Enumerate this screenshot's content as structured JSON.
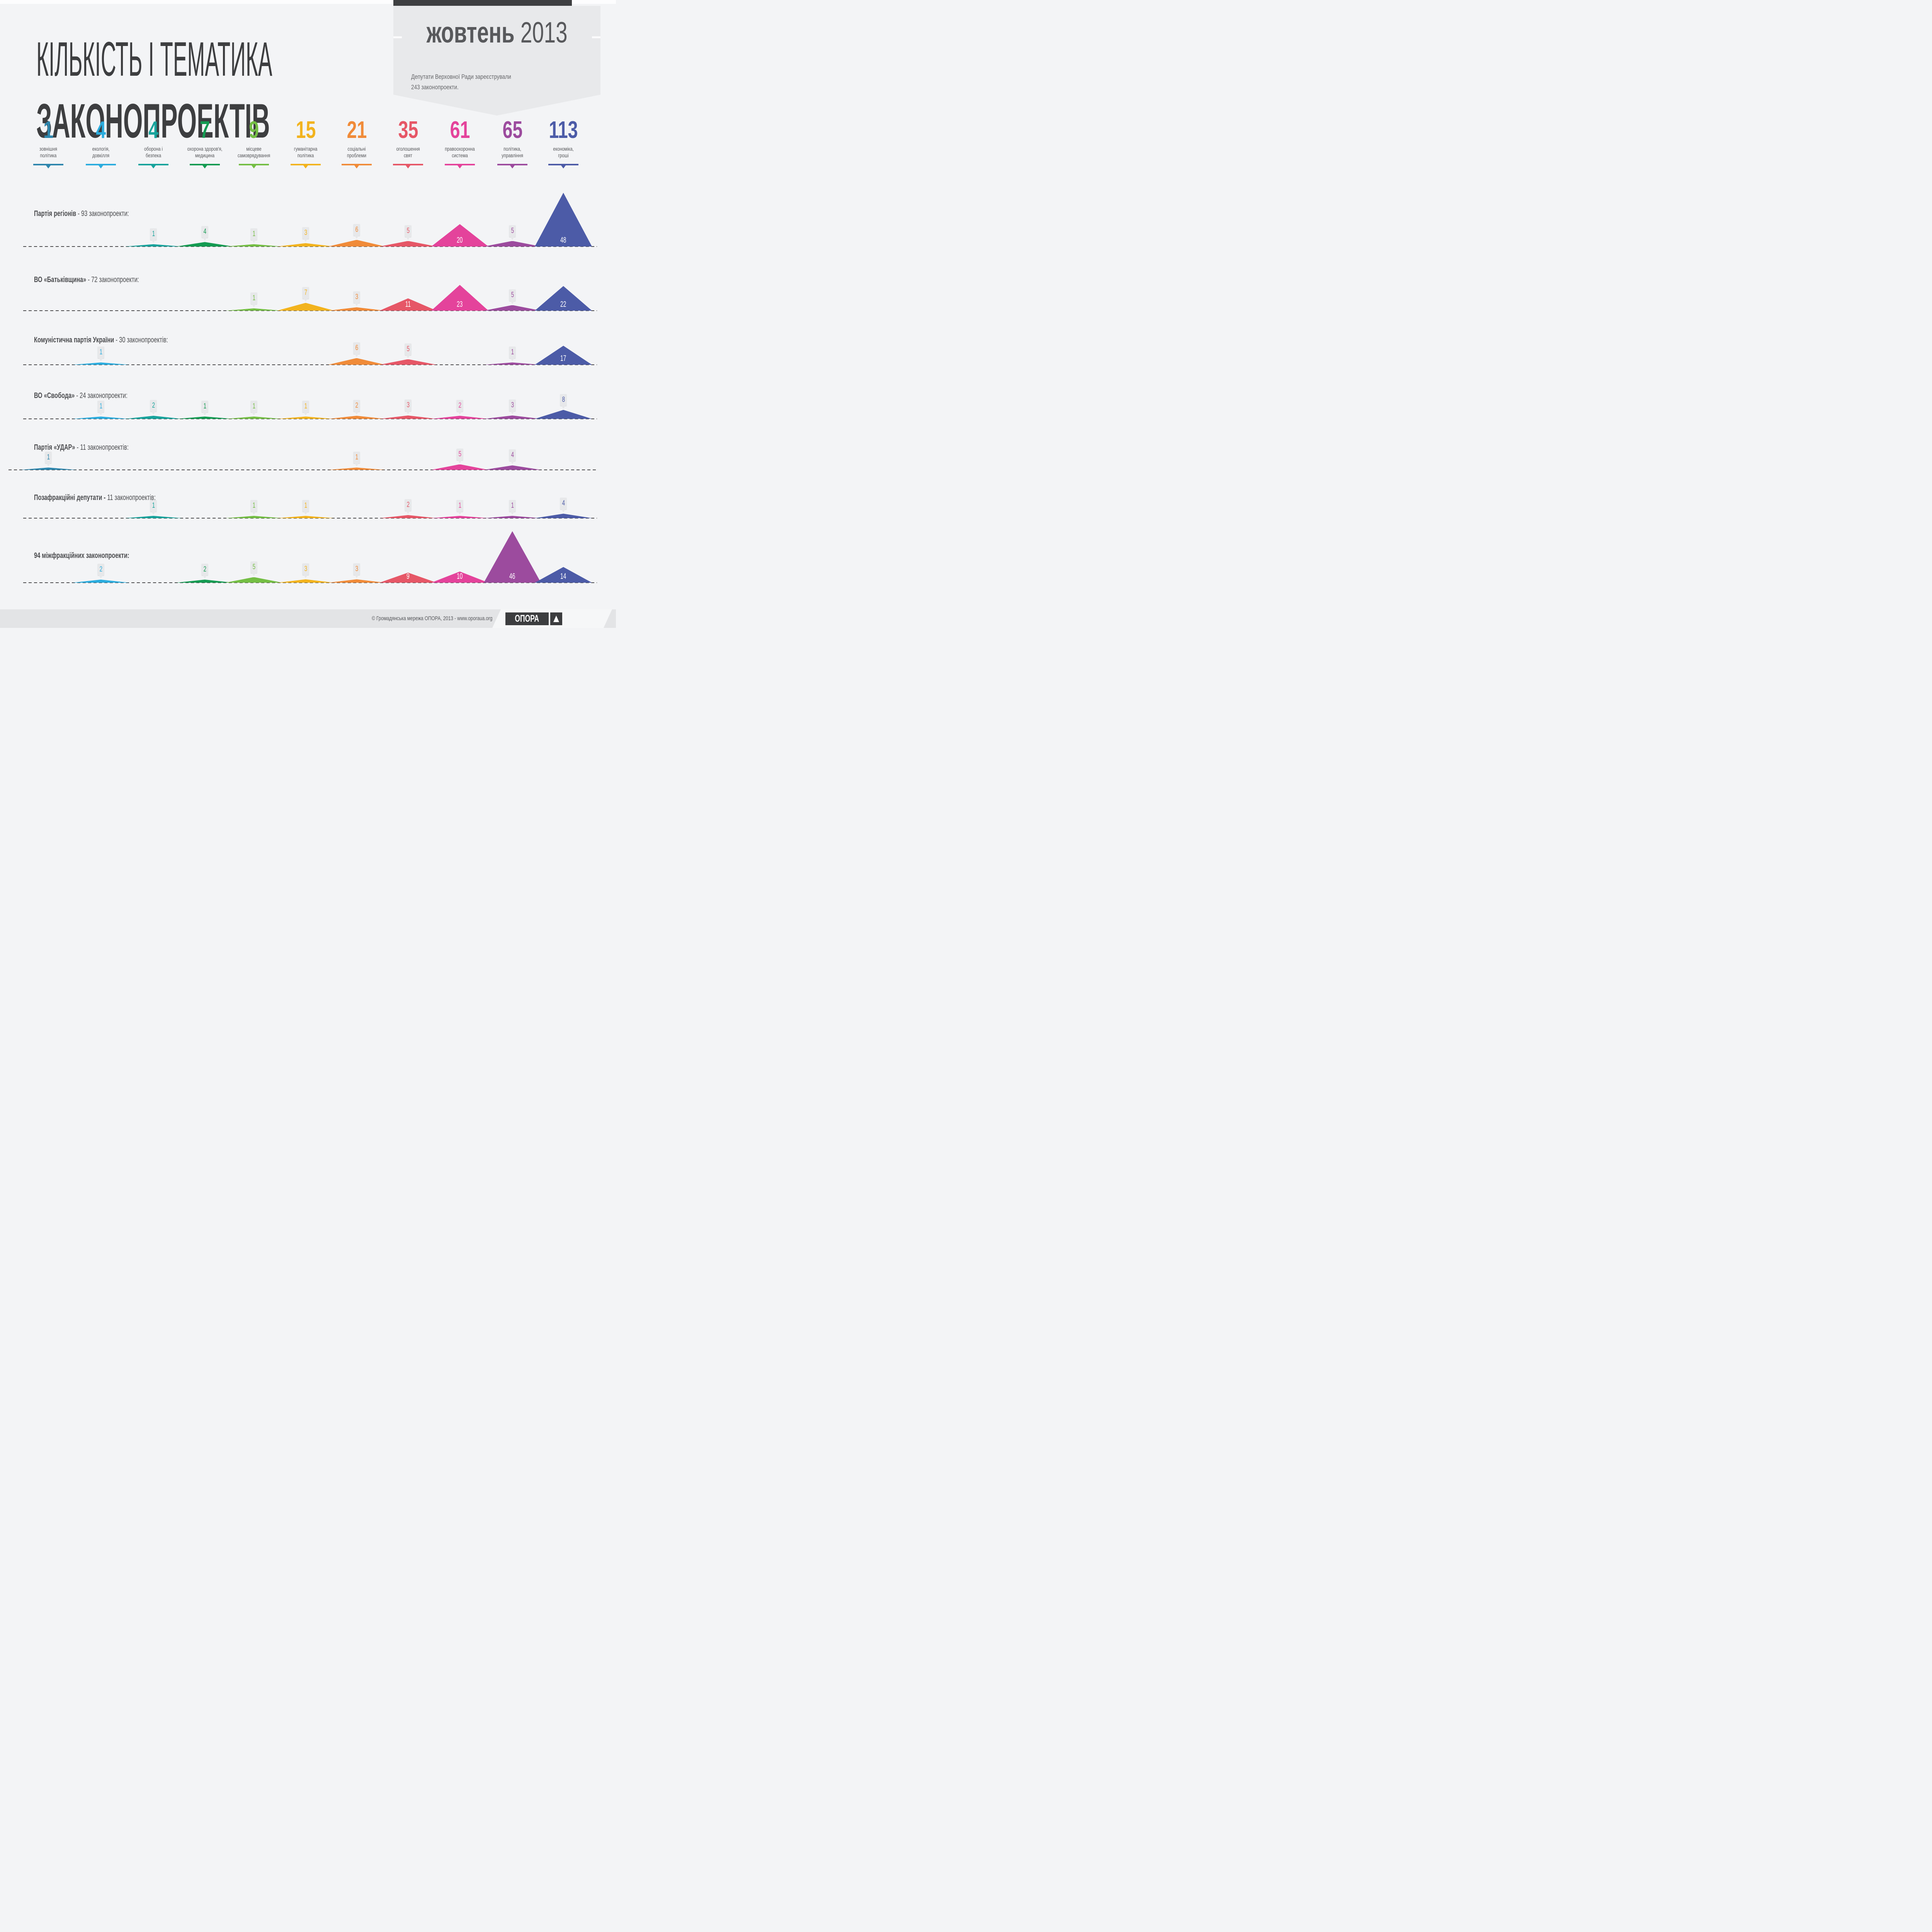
{
  "title": {
    "line1": "КІЛЬКІСТЬ І ТЕМАТИКА",
    "line2": "ЗАКОНОПРОЕКТІВ"
  },
  "badge": {
    "month": "жовтень",
    "year": "2013",
    "desc_line1": "Депутати Верховної Ради зареєстрували",
    "desc_line2": "243 законопроекти."
  },
  "categories": [
    {
      "count": "1",
      "label_line1": "зовнішня",
      "label_line2": "політика",
      "color": "#2E86AD"
    },
    {
      "count": "4",
      "label_line1": "екологія,",
      "label_line2": "довкілля",
      "color": "#2BACDE"
    },
    {
      "count": "4",
      "label_line1": "оборона і",
      "label_line2": "безпека",
      "color": "#17A39C"
    },
    {
      "count": "7",
      "label_line1": "охорона здоров'я,",
      "label_line2": "медицина",
      "color": "#149B52"
    },
    {
      "count": "9",
      "label_line1": "місцеве",
      "label_line2": "самоврядування",
      "color": "#74BE44"
    },
    {
      "count": "15",
      "label_line1": "гуманітарна",
      "label_line2": "політика",
      "color": "#F2B31E"
    },
    {
      "count": "21",
      "label_line1": "соціальні",
      "label_line2": "проблеми",
      "color": "#F08B39"
    },
    {
      "count": "35",
      "label_line1": "оголошення",
      "label_line2": "свят",
      "color": "#E65767"
    },
    {
      "count": "61",
      "label_line1": "правоохоронна",
      "label_line2": "система",
      "color": "#E4439B"
    },
    {
      "count": "65",
      "label_line1": "політика,",
      "label_line2": "управління",
      "color": "#9C4B9E"
    },
    {
      "count": "113",
      "label_line1": "економіка,",
      "label_line2": "гроші",
      "color": "#4C5BA7"
    }
  ],
  "rows": [
    {
      "party": "Партія регіонів",
      "suffix": " - 93 законопроекти:",
      "points": [
        {
          "cat": 2,
          "value": 1
        },
        {
          "cat": 3,
          "value": 4
        },
        {
          "cat": 4,
          "value": 1
        },
        {
          "cat": 5,
          "value": 3
        },
        {
          "cat": 6,
          "value": 6
        },
        {
          "cat": 7,
          "value": 5
        },
        {
          "cat": 8,
          "value": 20
        },
        {
          "cat": 9,
          "value": 5
        },
        {
          "cat": 10,
          "value": 48
        }
      ]
    },
    {
      "party": "ВО «Батьківщина»",
      "suffix": " - 72 законопроекти:",
      "points": [
        {
          "cat": 4,
          "value": 1
        },
        {
          "cat": 5,
          "value": 7
        },
        {
          "cat": 6,
          "value": 3
        },
        {
          "cat": 7,
          "value": 11
        },
        {
          "cat": 8,
          "value": 23
        },
        {
          "cat": 9,
          "value": 5
        },
        {
          "cat": 10,
          "value": 22
        }
      ]
    },
    {
      "party": "Комуністична партія України",
      "suffix": " - 30 законопроектів:",
      "points": [
        {
          "cat": 1,
          "value": 1
        },
        {
          "cat": 6,
          "value": 6
        },
        {
          "cat": 7,
          "value": 5
        },
        {
          "cat": 9,
          "value": 1
        },
        {
          "cat": 10,
          "value": 17
        }
      ]
    },
    {
      "party": "ВО «Свобода»",
      "suffix": " - 24 законопроекти:",
      "points": [
        {
          "cat": 1,
          "value": 1
        },
        {
          "cat": 2,
          "value": 2
        },
        {
          "cat": 3,
          "value": 1
        },
        {
          "cat": 4,
          "value": 1
        },
        {
          "cat": 5,
          "value": 1
        },
        {
          "cat": 6,
          "value": 2
        },
        {
          "cat": 7,
          "value": 3
        },
        {
          "cat": 8,
          "value": 2
        },
        {
          "cat": 9,
          "value": 3
        },
        {
          "cat": 10,
          "value": 8
        }
      ]
    },
    {
      "party": "Партія «УДАР»",
      "suffix": " - 11 законопроектів:",
      "points": [
        {
          "cat": 0,
          "value": 1
        },
        {
          "cat": 6,
          "value": 1
        },
        {
          "cat": 8,
          "value": 5
        },
        {
          "cat": 9,
          "value": 4
        }
      ]
    },
    {
      "party": "Позафракційні депутати -",
      "suffix": " 11 законопроектів:",
      "points": [
        {
          "cat": 2,
          "value": 1
        },
        {
          "cat": 4,
          "value": 1
        },
        {
          "cat": 5,
          "value": 1
        },
        {
          "cat": 7,
          "value": 2
        },
        {
          "cat": 8,
          "value": 1
        },
        {
          "cat": 9,
          "value": 1
        },
        {
          "cat": 10,
          "value": 4
        }
      ]
    },
    {
      "party": "94 міжфракційних законопроекти:",
      "suffix": "",
      "points": [
        {
          "cat": 1,
          "value": 2
        },
        {
          "cat": 3,
          "value": 2
        },
        {
          "cat": 4,
          "value": 5
        },
        {
          "cat": 5,
          "value": 3
        },
        {
          "cat": 6,
          "value": 3
        },
        {
          "cat": 7,
          "value": 9
        },
        {
          "cat": 8,
          "value": 10
        },
        {
          "cat": 9,
          "value": 46
        },
        {
          "cat": 10,
          "value": 14
        }
      ]
    }
  ],
  "footer": {
    "copyright": "© Громадянська мережа ОПОРА, 2013 - www.oporaua.org",
    "logo_text": "ОПОРА"
  },
  "chart_data": {
    "type": "area",
    "title": "КІЛЬКІСТЬ І ТЕМАТИКА ЗАКОНОПРОЕКТІВ",
    "subtitle": "жовтень 2013 — Депутати Верховної Ради зареєстрували 243 законопроекти.",
    "categories": [
      "зовнішня політика",
      "екологія, довкілля",
      "оборона і безпека",
      "охорона здоров'я, медицина",
      "місцеве самоврядування",
      "гуманітарна політика",
      "соціальні проблеми",
      "оголошення свят",
      "правоохоронна система",
      "політика, управління",
      "економіка, гроші"
    ],
    "category_totals": [
      1,
      4,
      4,
      7,
      9,
      15,
      21,
      35,
      61,
      65,
      113
    ],
    "series": [
      {
        "name": "Партія регіонів",
        "total": 93,
        "values": [
          0,
          0,
          1,
          4,
          1,
          3,
          6,
          5,
          20,
          5,
          48
        ]
      },
      {
        "name": "ВО «Батьківщина»",
        "total": 72,
        "values": [
          0,
          0,
          0,
          0,
          1,
          7,
          3,
          11,
          23,
          5,
          22
        ]
      },
      {
        "name": "Комуністична партія України",
        "total": 30,
        "values": [
          0,
          1,
          0,
          0,
          0,
          0,
          6,
          5,
          0,
          1,
          17
        ]
      },
      {
        "name": "ВО «Свобода»",
        "total": 24,
        "values": [
          0,
          1,
          2,
          1,
          1,
          1,
          2,
          3,
          2,
          3,
          8
        ]
      },
      {
        "name": "Партія «УДАР»",
        "total": 11,
        "values": [
          1,
          0,
          0,
          0,
          0,
          0,
          1,
          0,
          5,
          4,
          0
        ]
      },
      {
        "name": "Позафракційні депутати",
        "total": 11,
        "values": [
          0,
          0,
          1,
          0,
          1,
          1,
          0,
          2,
          1,
          1,
          4
        ]
      },
      {
        "name": "Міжфракційні законопроекти",
        "total": 94,
        "values": [
          0,
          2,
          0,
          2,
          5,
          3,
          3,
          9,
          10,
          46,
          14
        ]
      }
    ],
    "legend_position": "top",
    "grid": false
  }
}
